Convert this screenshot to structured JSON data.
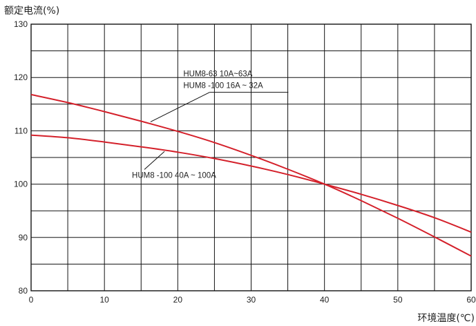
{
  "chart_data": {
    "type": "line",
    "title": "",
    "ylabel": "额定电流(%)",
    "xlabel": "环境温度(℃)",
    "xlim": [
      0,
      60
    ],
    "ylim": [
      80,
      130
    ],
    "x_ticks": [
      0,
      10,
      20,
      30,
      40,
      50,
      60
    ],
    "y_ticks": [
      80,
      90,
      100,
      110,
      120,
      130
    ],
    "grid": true,
    "line_color": "#d4202a",
    "series": [
      {
        "x": [
          0,
          5,
          10,
          15,
          20,
          25,
          30,
          35,
          40,
          45,
          50,
          55,
          60
        ],
        "y": [
          116.8,
          115.3,
          113.6,
          111.8,
          109.9,
          107.8,
          105.4,
          102.8,
          100,
          96.9,
          93.6,
          90.1,
          86.5
        ]
      },
      {
        "x": [
          0,
          5,
          10,
          15,
          20,
          25,
          30,
          35,
          40,
          45,
          50,
          55,
          60
        ],
        "y": [
          109.2,
          108.7,
          107.9,
          107,
          106,
          104.8,
          103.4,
          101.8,
          100,
          98.1,
          96,
          93.7,
          91
        ]
      }
    ],
    "annotations": [
      {
        "lines": [
          "HUM8-63  10A~63A",
          "HUM8 -100 16A ~ 32A"
        ],
        "target_series": 0,
        "target_x": 16,
        "text_x": 20,
        "text_y": 120.2
      },
      {
        "lines": [
          "HUM8 -100 40A ~ 100A"
        ],
        "target_series": 1,
        "target_x": 18,
        "text_x": 13,
        "text_y": 101.2
      }
    ]
  }
}
